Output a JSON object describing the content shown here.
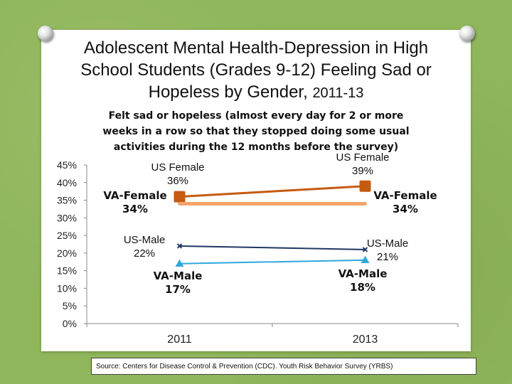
{
  "slide": {
    "title_line1": "Adolescent Mental Health-Depression in High",
    "title_line2": "School Students (Grades 9-12) Feeling Sad or",
    "title_line3": "Hopeless by Gender,",
    "title_years": "2011-13",
    "source": "Source: Centers for Disease Control & Prevention (CDC). Youth Risk Behavior Survey (YRBS)"
  },
  "chart_data": {
    "type": "line",
    "title": "Felt sad or hopeless (almost every day for 2 or more weeks in a row so that they stopped doing some usual activities during the 12 months before the survey)",
    "title_lines": [
      "Felt sad or hopeless (almost every day for 2 or more",
      "weeks in a row so that they stopped doing some usual",
      "activities during the 12 months before the survey)"
    ],
    "categories": [
      "2011",
      "2013"
    ],
    "ylim": [
      0,
      45
    ],
    "yticks": [
      "0%",
      "5%",
      "10%",
      "15%",
      "20%",
      "25%",
      "30%",
      "35%",
      "40%",
      "45%"
    ],
    "yticks_values": [
      0,
      5,
      10,
      15,
      20,
      25,
      30,
      35,
      40,
      45
    ],
    "grid": false,
    "series": [
      {
        "name": "US Female",
        "values": [
          36,
          39
        ],
        "color": "#c55a11",
        "labels": [
          "36%",
          "39%"
        ]
      },
      {
        "name": "VA-Female",
        "values": [
          34,
          34
        ],
        "color": "#f4a46a",
        "labels": [
          "34%",
          "34%"
        ]
      },
      {
        "name": "US-Male",
        "values": [
          22,
          21
        ],
        "color": "#1f3864",
        "labels": [
          "22%",
          "21%"
        ]
      },
      {
        "name": "VA-Male",
        "values": [
          17,
          18
        ],
        "color": "#2ea8dc",
        "labels": [
          "17%",
          "18%"
        ]
      }
    ]
  }
}
